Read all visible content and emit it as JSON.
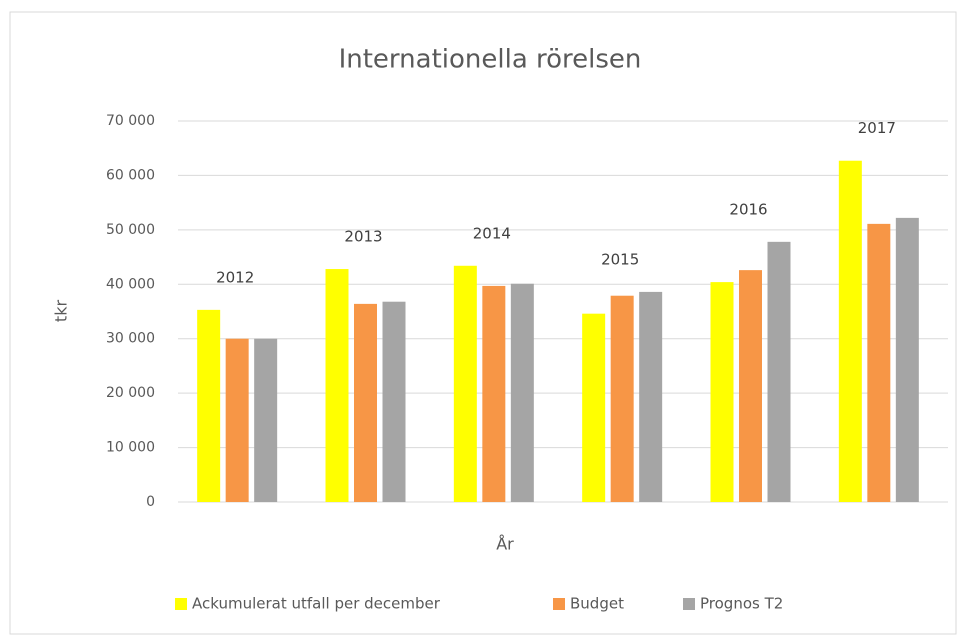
{
  "chart_data": {
    "type": "bar",
    "title": "Internationella rörelsen",
    "categories": [
      "2012",
      "2013",
      "2014",
      "2015",
      "2016",
      "2017"
    ],
    "series": [
      {
        "name": "Ackumulerat utfall per december",
        "color": "#ffff00",
        "values": [
          35300,
          42800,
          43400,
          34600,
          40400,
          62700
        ]
      },
      {
        "name": "Budget",
        "color": "#f79646",
        "values": [
          30000,
          36400,
          39700,
          37900,
          42600,
          51100
        ]
      },
      {
        "name": "Prognos T2",
        "color": "#a5a5a5",
        "values": [
          30000,
          36800,
          40100,
          38600,
          47800,
          52200
        ]
      }
    ],
    "xlabel": "År",
    "ylabel": "tkr",
    "ylim": [
      0,
      70000
    ],
    "yticks": [
      0,
      {
        "value": 10000,
        "label": "10 000"
      },
      {
        "value": 20000,
        "label": "20 000"
      },
      {
        "value": 30000,
        "label": "30 000"
      },
      {
        "value": 40000,
        "label": "40 000"
      },
      {
        "value": 50000,
        "label": "50 000"
      },
      {
        "value": 60000,
        "label": "60 000"
      },
      {
        "value": 70000,
        "label": "70 000"
      }
    ],
    "grid": true,
    "legend": "bottom"
  }
}
